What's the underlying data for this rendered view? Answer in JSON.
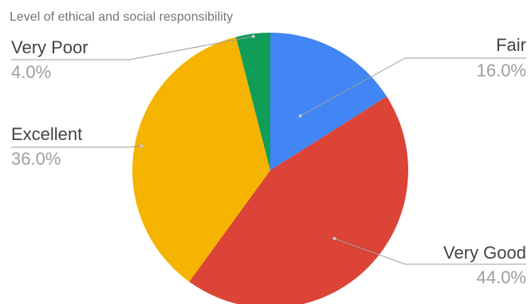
{
  "chart_data": {
    "type": "pie",
    "title": "Level of ethical and social responsibility",
    "start": "12 o'clock, clockwise",
    "slices": [
      {
        "label": "Fair",
        "value": 16.0,
        "display": "16.0%",
        "color": "#4285f4"
      },
      {
        "label": "Very Good",
        "value": 44.0,
        "display": "44.0%",
        "color": "#db4437"
      },
      {
        "label": "Excellent",
        "value": 36.0,
        "display": "36.0%",
        "color": "#f4b400"
      },
      {
        "label": "Very Poor",
        "value": 4.0,
        "display": "4.0%",
        "color": "#0f9d58"
      }
    ],
    "legend": "none (labels beside slices)"
  }
}
